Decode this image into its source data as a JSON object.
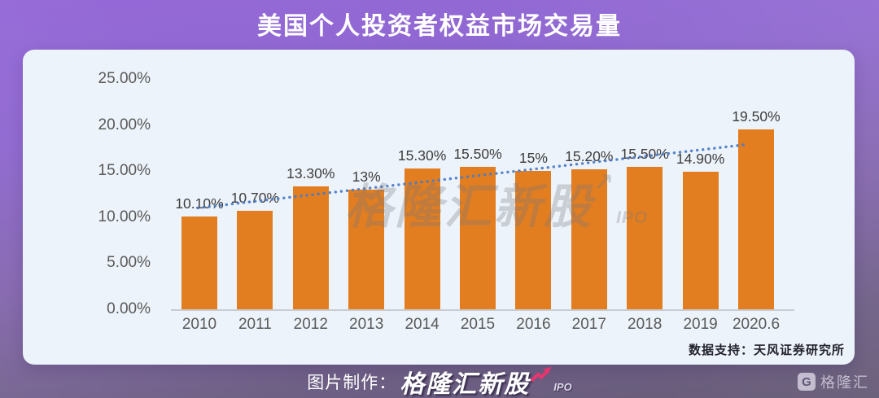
{
  "title": "美国个人投资者权益市场交易量",
  "chart_data": {
    "type": "bar",
    "title": "美国个人投资者权益市场交易量",
    "categories": [
      "2010",
      "2011",
      "2012",
      "2013",
      "2014",
      "2015",
      "2016",
      "2017",
      "2018",
      "2019",
      "2020.6"
    ],
    "values": [
      10.1,
      10.7,
      13.3,
      13.0,
      15.3,
      15.5,
      15.0,
      15.2,
      15.5,
      14.9,
      19.5
    ],
    "labels": [
      "10.10%",
      "10.70%",
      "13.30%",
      "13%",
      "15.30%",
      "15.50%",
      "15%",
      "15.20%",
      "15.50%",
      "14.90%",
      "19.50%"
    ],
    "xlabel": "",
    "ylabel": "",
    "ylim": [
      0,
      25
    ],
    "yticks": [
      {
        "label": "25.00%",
        "value": 25
      },
      {
        "label": "20.00%",
        "value": 20
      },
      {
        "label": "15.00%",
        "value": 15
      },
      {
        "label": "10.00%",
        "value": 10
      },
      {
        "label": "5.00%",
        "value": 5
      },
      {
        "label": "0.00%",
        "value": 0
      }
    ],
    "grid": false,
    "legend": false,
    "bar_color": "#E27E20",
    "trendline": {
      "style": "dotted",
      "color": "#4A7CC7",
      "start_value": 11.0,
      "end_value": 17.9
    }
  },
  "watermark": {
    "text": "格隆汇新股",
    "arrow": "↗",
    "suffix": "IPO"
  },
  "source_note": "数据支持：天风证券研究所",
  "footer": {
    "credit_label": "图片制作：",
    "brand": "格隆汇新股",
    "brand_suffix": "IPO",
    "logo_letter": "G",
    "logo_text": "格隆汇"
  },
  "colors": {
    "background_top": "#9569d8",
    "background_bottom": "#675c77",
    "card": "#EDF3FA",
    "bar": "#E27E20",
    "trendline": "#4A7CC7",
    "axis_text": "#595959",
    "label_text": "#3d3d3d",
    "accent_pink": "#e8356d"
  }
}
